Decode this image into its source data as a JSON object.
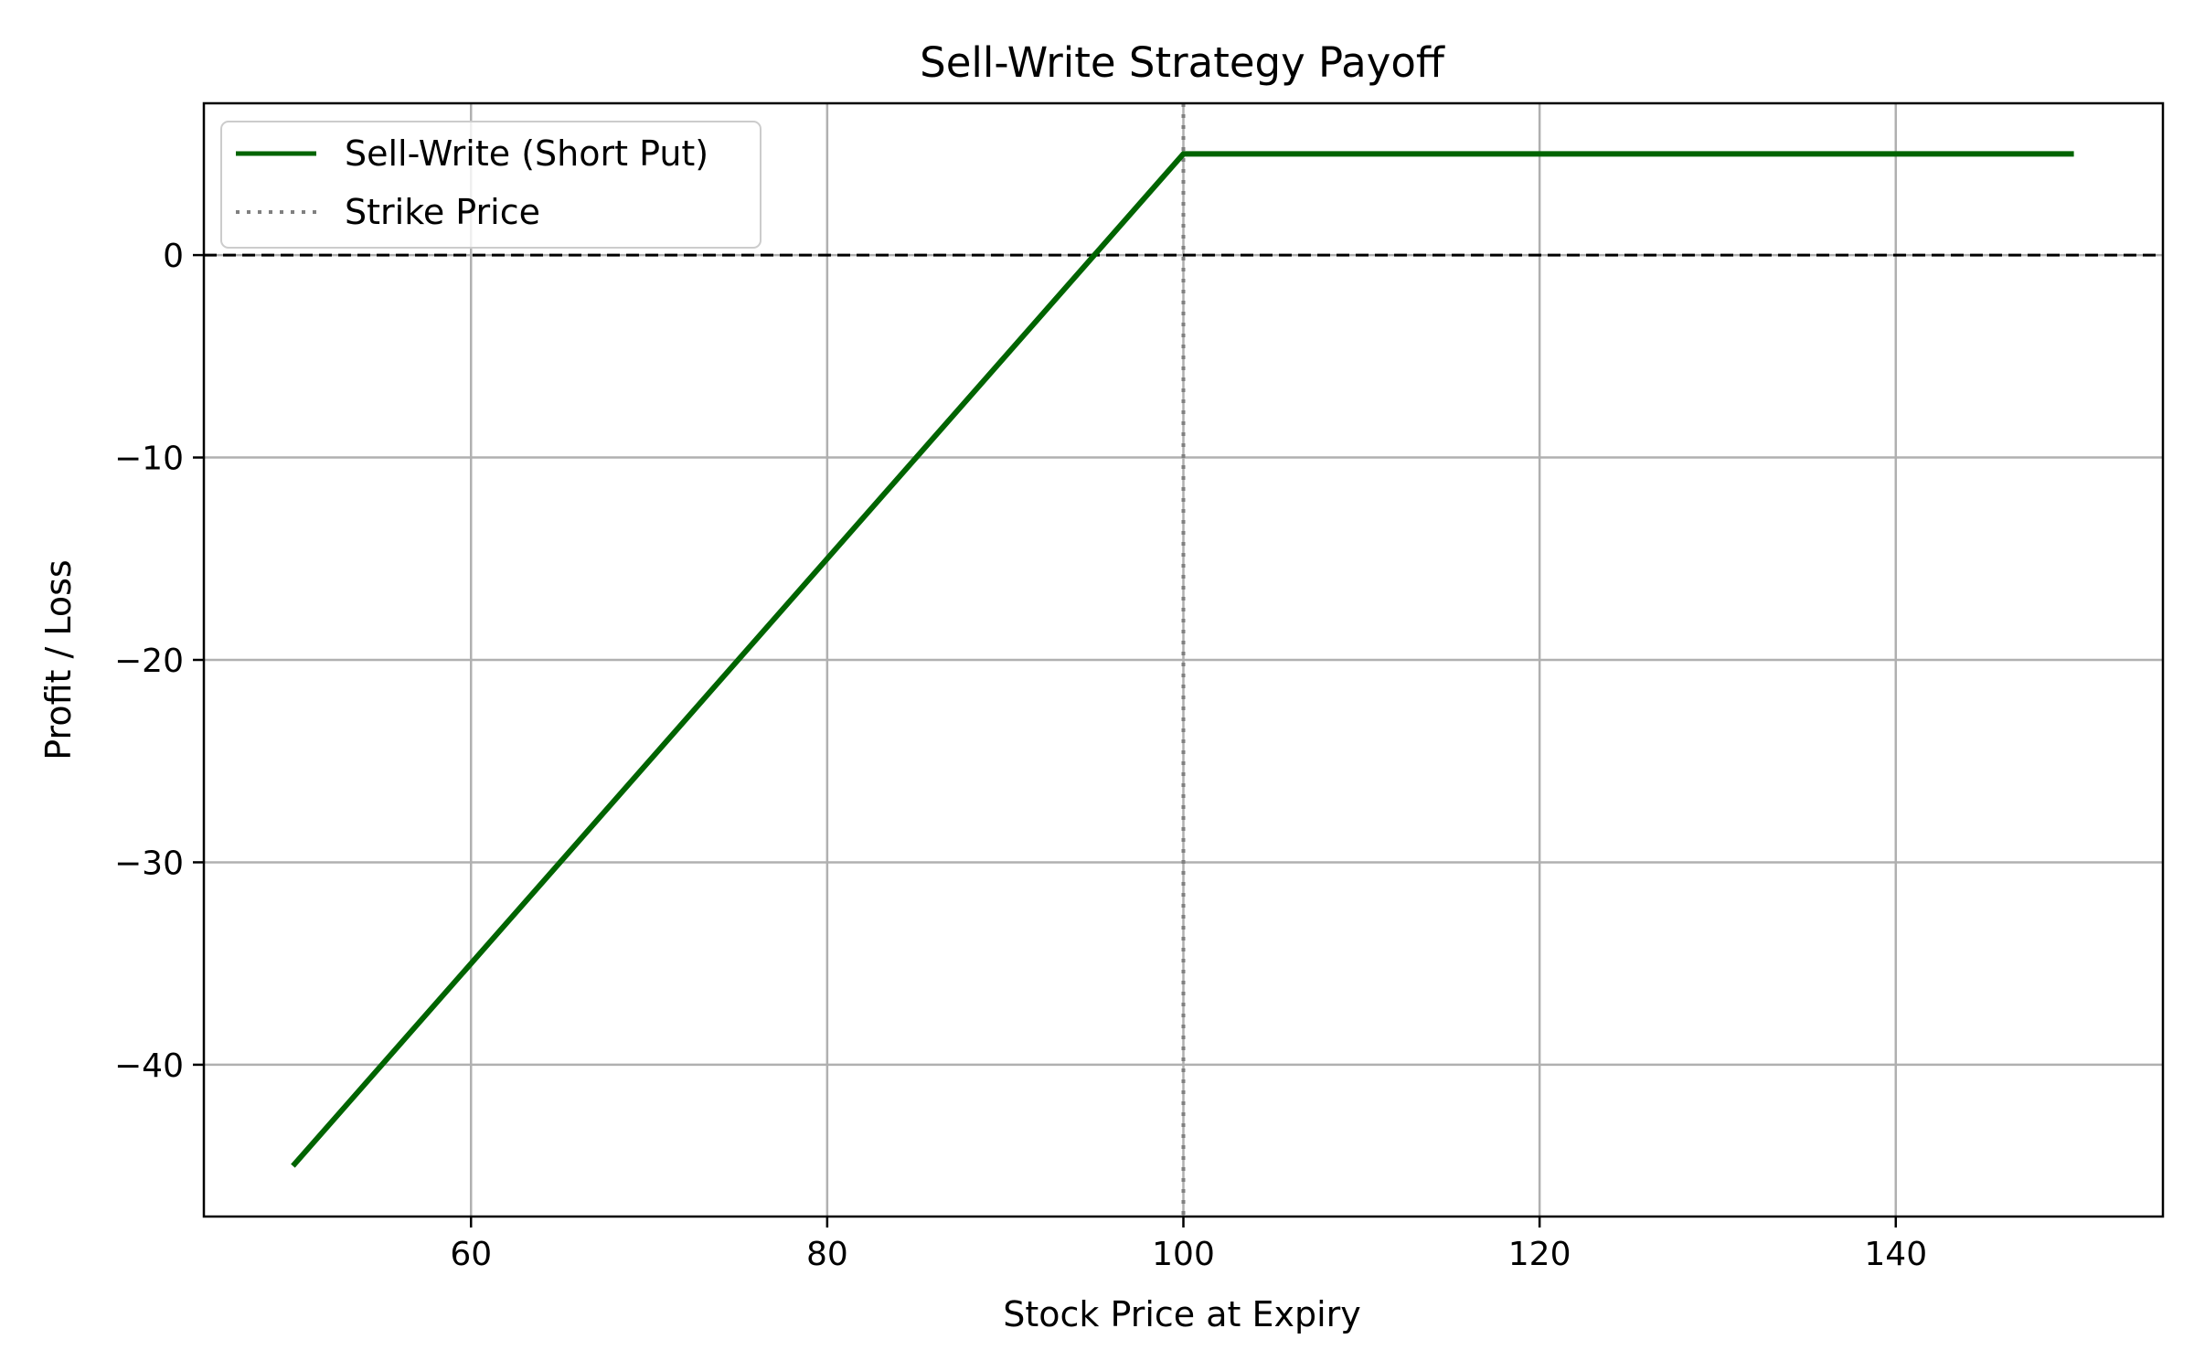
{
  "chart_data": {
    "type": "line",
    "title": "Sell-Write Strategy Payoff",
    "xlabel": "Stock Price at Expiry",
    "ylabel": "Profit / Loss",
    "xlim": [
      45,
      155
    ],
    "ylim": [
      -47.5,
      7.5
    ],
    "xticks": [
      60,
      80,
      100,
      120,
      140
    ],
    "yticks": [
      0,
      -10,
      -20,
      -30,
      -40
    ],
    "grid": true,
    "legend_position": "top-left",
    "series": [
      {
        "name": "Sell-Write (Short Put)",
        "color": "#006400",
        "style": "solid",
        "x": [
          50,
          100,
          150
        ],
        "y": [
          -45,
          5,
          5
        ]
      }
    ],
    "reference_lines": [
      {
        "name": "Strike Price",
        "orientation": "vertical",
        "value": 100,
        "color": "#808080",
        "style": "dotted"
      },
      {
        "name": "",
        "orientation": "horizontal",
        "value": 0,
        "color": "#000000",
        "style": "dashed"
      }
    ]
  }
}
